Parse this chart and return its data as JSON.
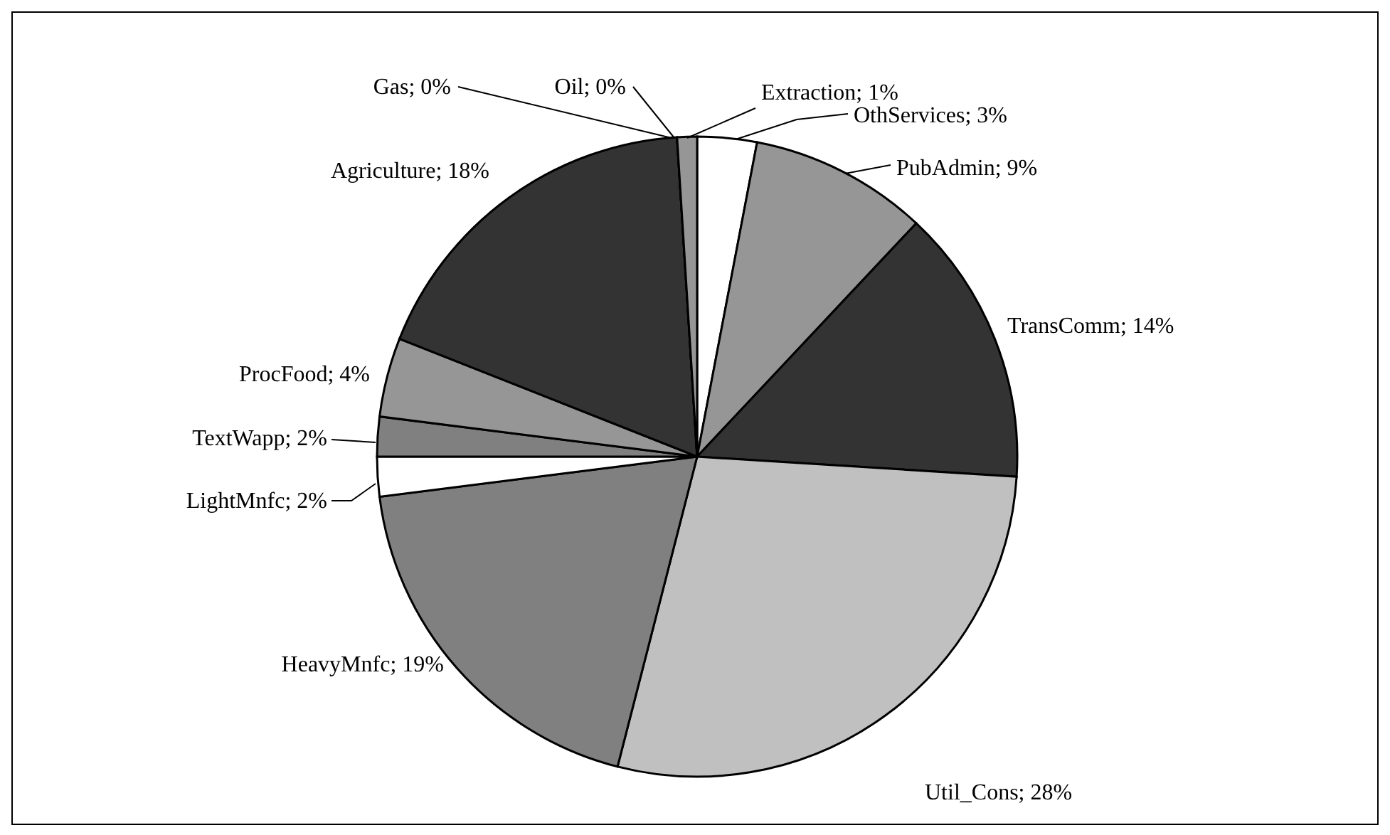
{
  "chart_data": {
    "type": "pie",
    "categories": [
      "OthServices",
      "PubAdmin",
      "TransComm",
      "Util_Cons",
      "HeavyMnfc",
      "LightMnfc",
      "TextWapp",
      "ProcFood",
      "Agriculture",
      "Gas",
      "Oil",
      "Extraction"
    ],
    "values": [
      3,
      9,
      14,
      28,
      19,
      2,
      2,
      4,
      18,
      0,
      0,
      1
    ],
    "value_labels": [
      "; 3%",
      "; 9%",
      "; 14%",
      "; 28%",
      "; 19%",
      "; 2%",
      "; 2%",
      "; 4%",
      "; 18%",
      "; 0%",
      "; 0%",
      "; 1%"
    ],
    "colors": [
      "#ffffff",
      "#969696",
      "#333333",
      "#c0c0c0",
      "#808080",
      "#ffffff",
      "#808080",
      "#969696",
      "#333333",
      "#808080",
      "#c0c0c0",
      "#969696"
    ]
  }
}
